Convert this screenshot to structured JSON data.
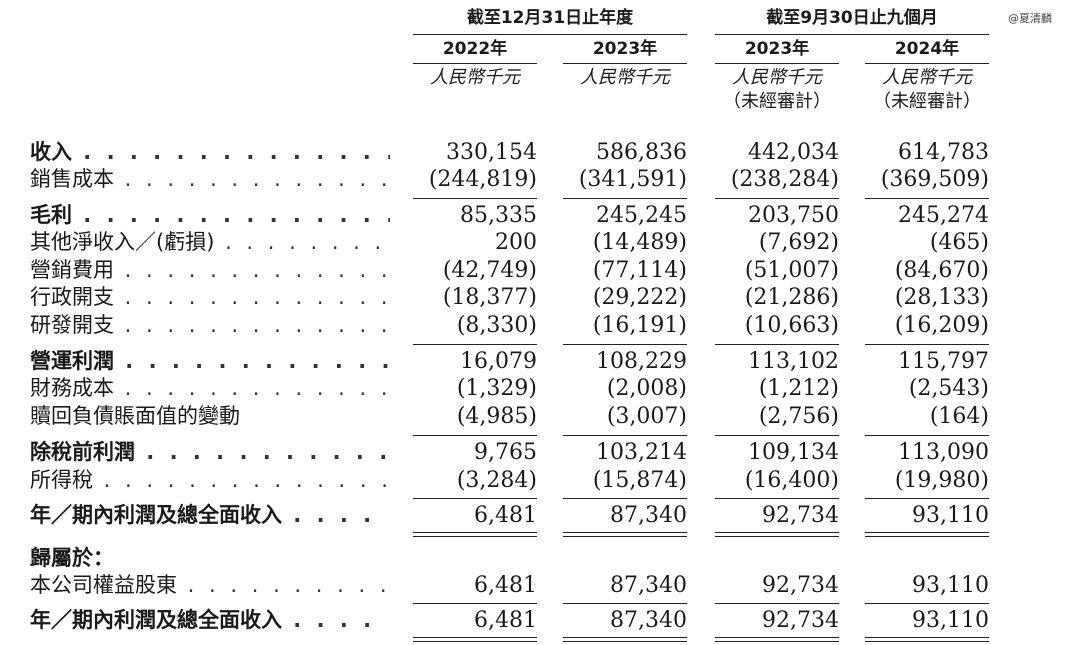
{
  "watermark": "@夏清麟",
  "header": {
    "group1": "截至12月31日止年度",
    "group2": "截至9月30日止九個月",
    "years": [
      "2022年",
      "2023年",
      "2023年",
      "2024年"
    ],
    "units": [
      "人民幣千元",
      "人民幣千元",
      "人民幣千元",
      "人民幣千元"
    ],
    "unaudited": [
      "",
      "",
      "（未經審計）",
      "（未經審計）"
    ]
  },
  "rows": [
    {
      "label": "收入",
      "dots": ". . . . . . . . . . . . . . . . . . . . . . . . . .",
      "values": [
        "330,154",
        "586,836",
        "442,034",
        "614,783"
      ]
    },
    {
      "label": "銷售成本",
      "dots": ". . . . . . . . . . . . . . . . . . . . . . .",
      "values": [
        "(244,819)",
        "(341,591)",
        "(238,284)",
        "(369,509)"
      ]
    },
    {
      "label": "毛利",
      "dots": ". . . . . . . . . . . . . . . . . . . . . . . . . .",
      "values": [
        "85,335",
        "245,245",
        "203,750",
        "245,274"
      ]
    },
    {
      "label": "其他淨收入／(虧損)",
      "dots": ". . . . . . . . . . . .",
      "values": [
        "200",
        "(14,489)",
        "(7,692)",
        "(465)"
      ]
    },
    {
      "label": "營銷費用",
      "dots": ". . . . . . . . . . . . . . . . . . . . . . .",
      "values": [
        "(42,749)",
        "(77,114)",
        "(51,007)",
        "(84,670)"
      ]
    },
    {
      "label": "行政開支",
      "dots": ". . . . . . . . . . . . . . . . . . . . . . .",
      "values": [
        "(18,377)",
        "(29,222)",
        "(21,286)",
        "(28,133)"
      ]
    },
    {
      "label": "研發開支",
      "dots": ". . . . . . . . . . . . . . . . . . . . . . .",
      "values": [
        "(8,330)",
        "(16,191)",
        "(10,663)",
        "(16,209)"
      ]
    },
    {
      "label": "營運利潤",
      "dots": ". . . . . . . . . . . . . . . . . . . . . . .",
      "values": [
        "16,079",
        "108,229",
        "113,102",
        "115,797"
      ]
    },
    {
      "label": "財務成本",
      "dots": ". . . . . . . . . . . . . . . . . . . . . . .",
      "values": [
        "(1,329)",
        "(2,008)",
        "(1,212)",
        "(2,543)"
      ]
    },
    {
      "label": "贖回負債賬面值的變動",
      "dots": "",
      "values": [
        "(4,985)",
        "(3,007)",
        "(2,756)",
        "(164)"
      ]
    },
    {
      "label": "除稅前利潤",
      "dots": ". . . . . . . . . . . . . . . . . . . . .",
      "values": [
        "9,765",
        "103,214",
        "109,134",
        "113,090"
      ]
    },
    {
      "label": "所得稅",
      "dots": ". . . . . . . . . . . . . . . . . . . . . . . . .",
      "values": [
        "(3,284)",
        "(15,874)",
        "(16,400)",
        "(19,980)"
      ]
    },
    {
      "label": "年／期內利潤及總全面收入",
      "dots": ". . . .",
      "values": [
        "6,481",
        "87,340",
        "92,734",
        "93,110"
      ]
    },
    {
      "label": "歸屬於：",
      "dots": "",
      "values": [
        "",
        "",
        "",
        ""
      ]
    },
    {
      "label": "本公司權益股東",
      "dots": ". . . . . . . . . . . . . . .",
      "values": [
        "6,481",
        "87,340",
        "92,734",
        "93,110"
      ]
    },
    {
      "label": "年／期內利潤及總全面收入",
      "dots": ". . . .",
      "values": [
        "6,481",
        "87,340",
        "92,734",
        "93,110"
      ]
    }
  ]
}
